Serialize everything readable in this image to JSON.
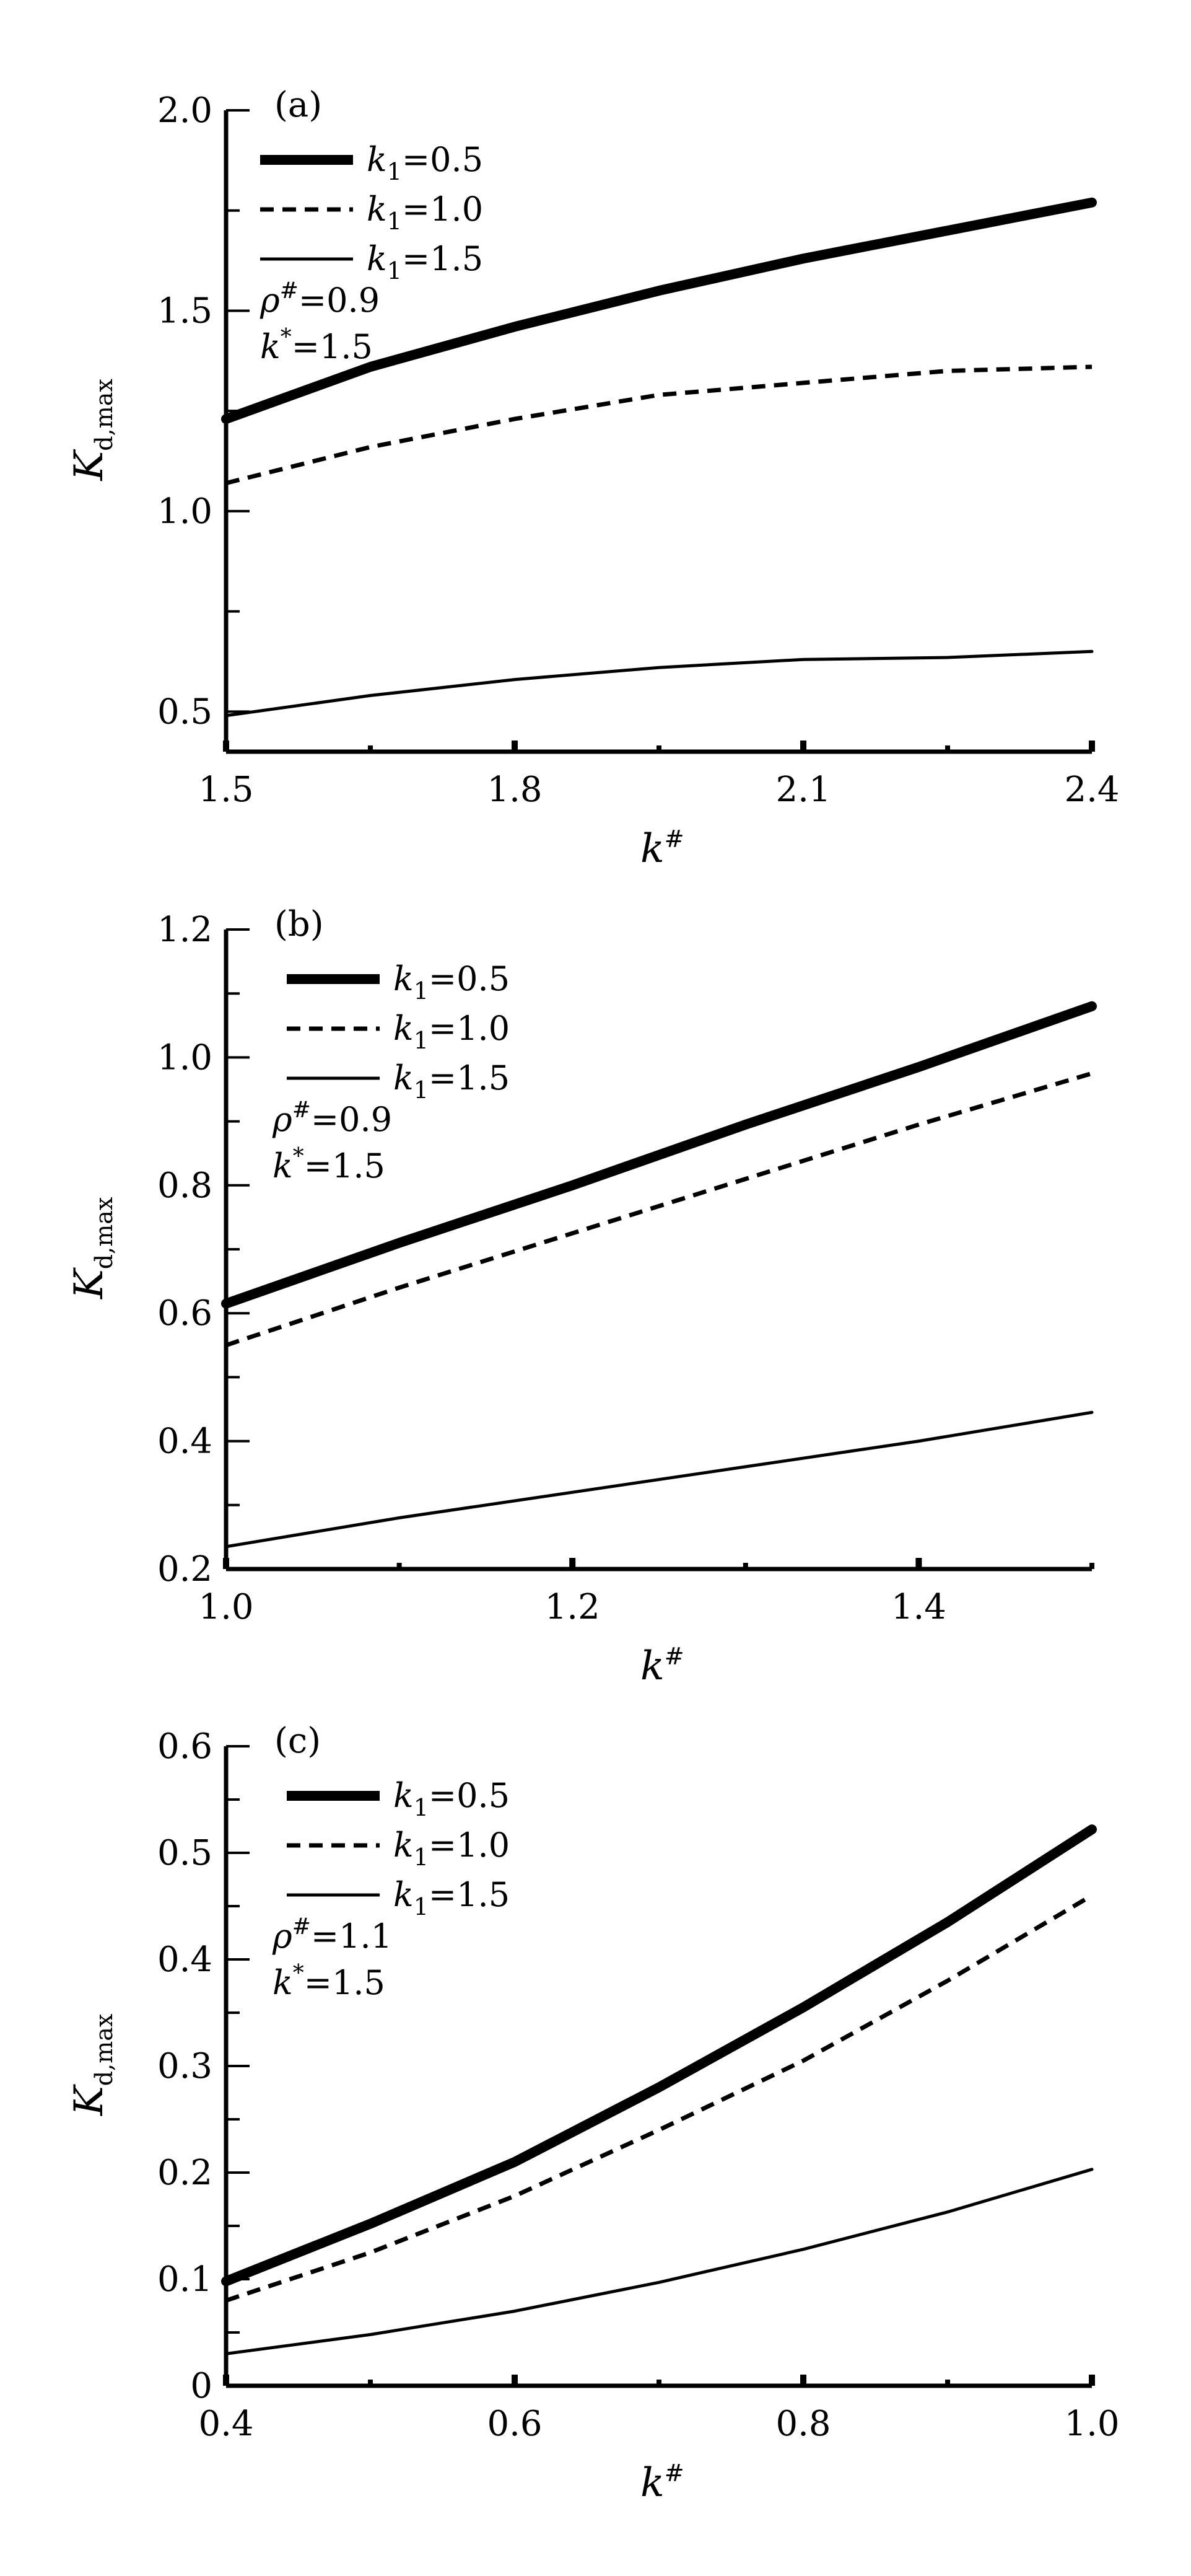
{
  "chart_data": [
    {
      "type": "line",
      "panel_label": "(a)",
      "xlabel": "k#",
      "ylabel": "Kd,max",
      "xlim": [
        1.5,
        2.4
      ],
      "ylim": [
        0.4,
        2.0
      ],
      "xticks": [
        1.5,
        1.8,
        2.1,
        2.4
      ],
      "xtick_labels": [
        "1.5",
        "1.8",
        "2.1",
        "2.4"
      ],
      "yticks": [
        0.5,
        1.0,
        1.5,
        2.0
      ],
      "ytick_labels": [
        "0.5",
        "1.0",
        "1.5",
        "2.0"
      ],
      "grid": false,
      "legend_placement": "top-left",
      "annotations": [
        "ρ#=0.9",
        "k*=1.5"
      ],
      "x": [
        1.5,
        1.65,
        1.8,
        1.95,
        2.1,
        2.25,
        2.4
      ],
      "series": [
        {
          "name": "k1=0.5",
          "style": "thick",
          "values": [
            1.23,
            1.36,
            1.46,
            1.55,
            1.63,
            1.7,
            1.77
          ]
        },
        {
          "name": "k1=1.0",
          "style": "dashed",
          "values": [
            1.07,
            1.16,
            1.23,
            1.29,
            1.32,
            1.35,
            1.36
          ]
        },
        {
          "name": "k1=1.5",
          "style": "thin",
          "values": [
            0.49,
            0.54,
            0.58,
            0.61,
            0.63,
            0.635,
            0.65
          ]
        }
      ]
    },
    {
      "type": "line",
      "panel_label": "(b)",
      "xlabel": "k#",
      "ylabel": "Kd,max",
      "xlim": [
        1.0,
        1.5
      ],
      "ylim": [
        0.2,
        1.2
      ],
      "xticks": [
        1.0,
        1.2,
        1.4
      ],
      "xtick_labels": [
        "1.0",
        "1.2",
        "1.4"
      ],
      "yticks": [
        0.2,
        0.4,
        0.6,
        0.8,
        1.0,
        1.2
      ],
      "ytick_labels": [
        "0.2",
        "0.4",
        "0.6",
        "0.8",
        "1.0",
        "1.2"
      ],
      "grid": false,
      "legend_placement": "top-left",
      "annotations": [
        "ρ#=0.9",
        "k*=1.5"
      ],
      "x": [
        1.0,
        1.1,
        1.2,
        1.3,
        1.4,
        1.5
      ],
      "series": [
        {
          "name": "k1=0.5",
          "style": "thick",
          "values": [
            0.615,
            0.71,
            0.8,
            0.895,
            0.985,
            1.08
          ]
        },
        {
          "name": "k1=1.0",
          "style": "dashed",
          "values": [
            0.55,
            0.64,
            0.725,
            0.81,
            0.895,
            0.975
          ]
        },
        {
          "name": "k1=1.5",
          "style": "thin",
          "values": [
            0.235,
            0.28,
            0.32,
            0.36,
            0.4,
            0.445
          ]
        }
      ]
    },
    {
      "type": "line",
      "panel_label": "(c)",
      "xlabel": "k#",
      "ylabel": "Kd,max",
      "xlim": [
        0.4,
        1.0
      ],
      "ylim": [
        0,
        0.6
      ],
      "xticks": [
        0.4,
        0.6,
        0.8,
        1.0
      ],
      "xtick_labels": [
        "0.4",
        "0.6",
        "0.8",
        "1.0"
      ],
      "yticks": [
        0,
        0.1,
        0.2,
        0.3,
        0.4,
        0.5,
        0.6
      ],
      "ytick_labels": [
        "0",
        "0.1",
        "0.2",
        "0.3",
        "0.4",
        "0.5",
        "0.6"
      ],
      "grid": false,
      "legend_placement": "top-left",
      "annotations": [
        "ρ#=1.1",
        "k*=1.5"
      ],
      "x": [
        0.4,
        0.5,
        0.6,
        0.7,
        0.8,
        0.9,
        1.0
      ],
      "series": [
        {
          "name": "k1=0.5",
          "style": "thick",
          "values": [
            0.098,
            0.152,
            0.21,
            0.28,
            0.355,
            0.435,
            0.522
          ]
        },
        {
          "name": "k1=1.0",
          "style": "dashed",
          "values": [
            0.08,
            0.125,
            0.178,
            0.24,
            0.305,
            0.38,
            0.46
          ]
        },
        {
          "name": "k1=1.5",
          "style": "thin",
          "values": [
            0.03,
            0.048,
            0.07,
            0.097,
            0.128,
            0.163,
            0.203
          ]
        }
      ]
    }
  ]
}
